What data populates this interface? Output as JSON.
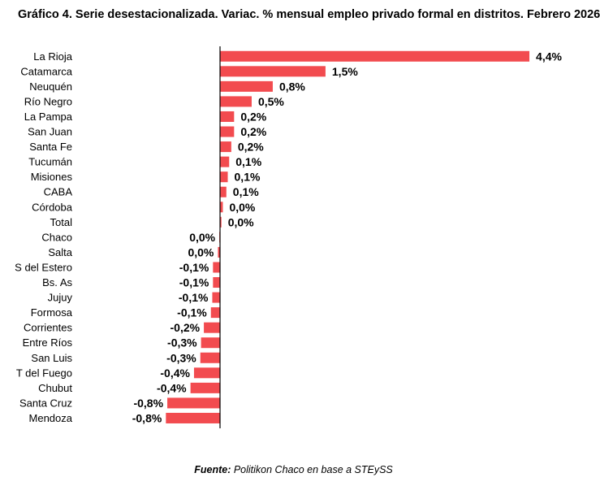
{
  "title": "Gráfico 4. Serie desestacionalizada. Variac. % mensual empleo privado formal en distritos. Febrero 2026",
  "source": {
    "label": "Fuente:",
    "text": " Politikon Chaco en base a STEySS"
  },
  "colors": {
    "bar": "#f24b4f",
    "axis": "#000000",
    "text": "#000000"
  },
  "chart_data": {
    "type": "bar",
    "orientation": "horizontal",
    "title": "Gráfico 4. Serie desestacionalizada. Variac. % mensual empleo privado formal en distritos. Febrero 2026",
    "xlabel": "",
    "ylabel": "",
    "grid": false,
    "legend": "none",
    "categories": [
      "La Rioja",
      "Catamarca",
      "Neuquén",
      "Río Negro",
      "La Pampa",
      "San Juan",
      "Santa Fe",
      "Tucumán",
      "Misiones",
      "CABA",
      "Córdoba",
      "Total",
      "Chaco",
      "Salta",
      "S del Estero",
      "Bs. As",
      "Jujuy",
      "Formosa",
      "Corrientes",
      "Entre Ríos",
      "San Luis",
      "T del Fuego",
      "Chubut",
      "Santa Cruz",
      "Mendoza"
    ],
    "values": [
      4.4,
      1.5,
      0.75,
      0.45,
      0.2,
      0.2,
      0.16,
      0.13,
      0.11,
      0.09,
      0.04,
      0.02,
      -0.01,
      -0.03,
      -0.1,
      -0.1,
      -0.11,
      -0.13,
      -0.23,
      -0.27,
      -0.28,
      -0.37,
      -0.42,
      -0.75,
      -0.77
    ],
    "value_labels": [
      "4,4%",
      "1,5%",
      "0,8%",
      "0,5%",
      "0,2%",
      "0,2%",
      "0,2%",
      "0,1%",
      "0,1%",
      "0,1%",
      "0,0%",
      "0,0%",
      "0,0%",
      "0,0%",
      "-0,1%",
      "-0,1%",
      "-0,1%",
      "-0,1%",
      "-0,2%",
      "-0,3%",
      "-0,3%",
      "-0,4%",
      "-0,4%",
      "-0,8%",
      "-0,8%"
    ]
  }
}
